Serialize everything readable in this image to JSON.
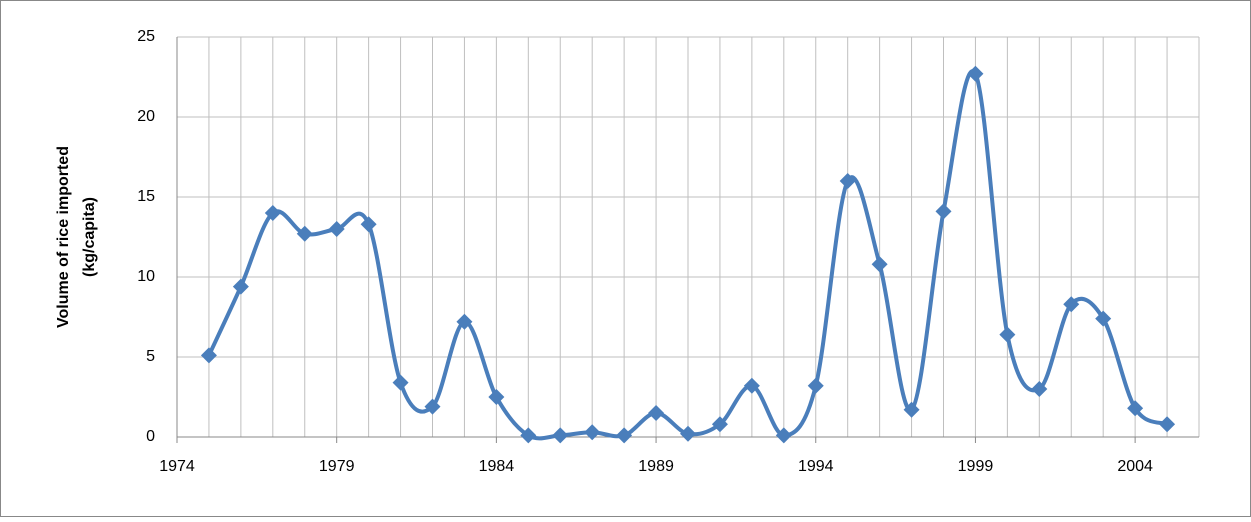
{
  "chart_data": {
    "type": "line",
    "ylabel": [
      "Volume of rice imported",
      "(kg/capita)"
    ],
    "x": [
      1975,
      1976,
      1977,
      1978,
      1979,
      1980,
      1981,
      1982,
      1983,
      1984,
      1985,
      1986,
      1987,
      1988,
      1989,
      1990,
      1991,
      1992,
      1993,
      1994,
      1995,
      1996,
      1997,
      1998,
      1999,
      2000,
      2001,
      2002,
      2003,
      2004,
      2005
    ],
    "series": [
      {
        "color": "#4a7ebb",
        "smooth": true,
        "marker": "diamond",
        "values": [
          5.1,
          9.4,
          14.0,
          12.7,
          13.0,
          13.3,
          3.4,
          1.9,
          7.2,
          2.5,
          0.1,
          0.1,
          0.3,
          0.1,
          1.5,
          0.2,
          0.8,
          3.2,
          0.1,
          3.2,
          16.0,
          10.8,
          1.7,
          14.1,
          22.7,
          6.4,
          3.0,
          8.3,
          7.4,
          1.8,
          0.8
        ]
      }
    ],
    "xlim": [
      1974,
      2006
    ],
    "xticks": [
      1974,
      1979,
      1984,
      1989,
      1994,
      1999,
      2004
    ],
    "xminorticks": [
      1974,
      1975,
      1976,
      1977,
      1978,
      1979,
      1980,
      1981,
      1982,
      1983,
      1984,
      1985,
      1986,
      1987,
      1988,
      1989,
      1990,
      1991,
      1992,
      1993,
      1994,
      1995,
      1996,
      1997,
      1998,
      1999,
      2000,
      2001,
      2002,
      2003,
      2004,
      2005,
      2006
    ],
    "ylim": [
      0,
      25
    ],
    "yticks": [
      0,
      5,
      10,
      15,
      20,
      25
    ],
    "grid": true
  }
}
